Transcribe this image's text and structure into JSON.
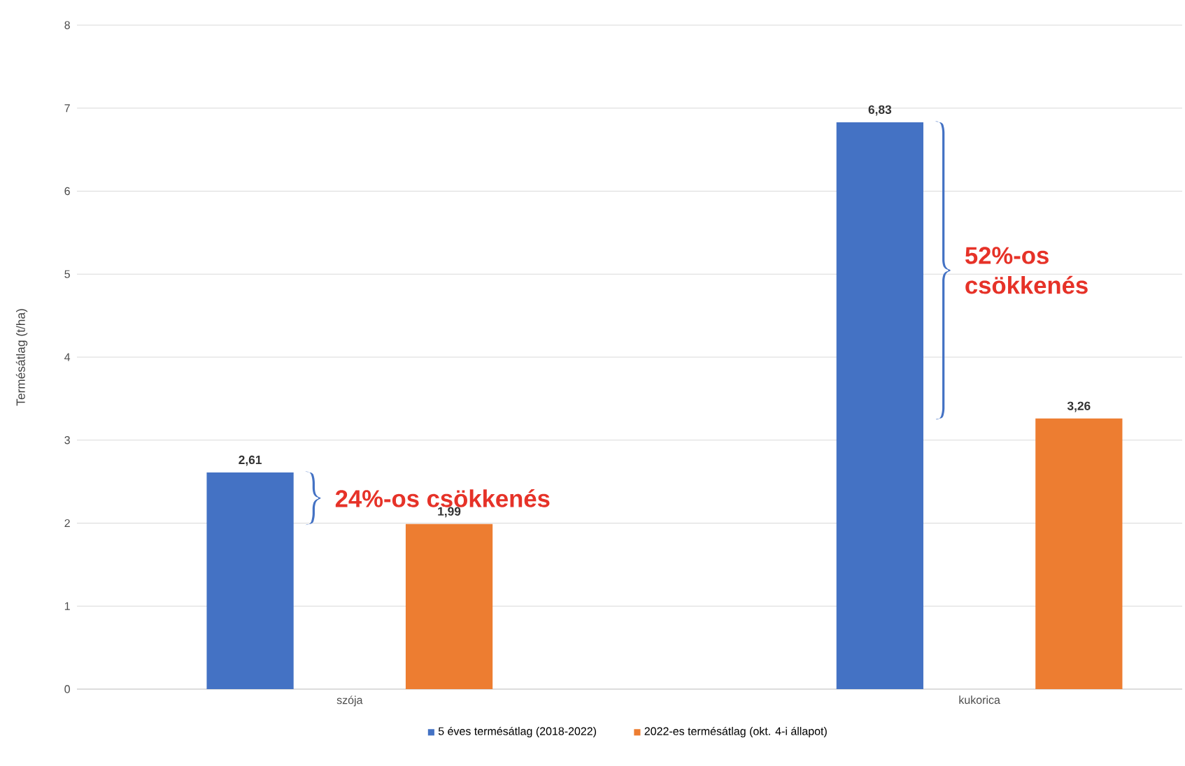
{
  "chart_data": {
    "type": "bar",
    "ylabel": "Termésátlag (t/ha)",
    "categories": [
      "szója",
      "kukorica"
    ],
    "series": [
      {
        "name": "5 éves termésátlag (2018-2022)",
        "color": "#4472c4",
        "values": [
          2.61,
          6.83
        ],
        "value_labels": [
          "2,61",
          "6,83"
        ]
      },
      {
        "name": "2022-es termésátlag (okt. 4-i állapot)",
        "color": "#ed7d31",
        "values": [
          1.99,
          3.26
        ],
        "value_labels": [
          "1,99",
          "3,26"
        ]
      }
    ],
    "ylim": [
      0,
      8
    ],
    "yticks": [
      0,
      1,
      2,
      3,
      4,
      5,
      6,
      7,
      8
    ],
    "grid": "y",
    "legend": "bottom",
    "annotations": [
      "24%-os csökkenés",
      "52%-os csökkenés"
    ]
  }
}
